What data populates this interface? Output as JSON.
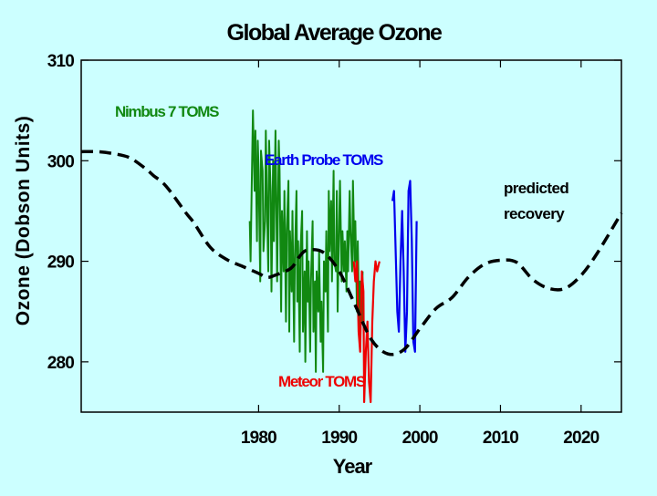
{
  "chart_data": {
    "type": "line",
    "title": "Global Average Ozone",
    "xlabel": "Year",
    "ylabel": "Ozone (Dobson Units)",
    "xlim": [
      1958,
      2025
    ],
    "ylim": [
      275,
      310
    ],
    "x_ticks": [
      "1980",
      "1990",
      "2000",
      "2010",
      "2020"
    ],
    "y_ticks": [
      "280",
      "290",
      "300",
      "310"
    ],
    "grid": false,
    "annotations": {
      "nimbus": "Nimbus 7 TOMS",
      "earth_probe": "Earth Probe TOMS",
      "meteor": "Meteor TOMS",
      "predicted_1": "predicted",
      "predicted_2": "recovery"
    },
    "colors": {
      "nimbus": "#118811",
      "earth_probe": "#0000ee",
      "meteor": "#ee0000",
      "predicted": "#000000"
    },
    "series": [
      {
        "name": "Nimbus 7 TOMS",
        "x": [
          1978.9,
          1979.0,
          1979.2,
          1979.3,
          1979.5,
          1979.6,
          1979.8,
          1979.9,
          1980.0,
          1980.2,
          1980.3,
          1980.5,
          1980.6,
          1980.8,
          1980.9,
          1981.1,
          1981.2,
          1981.3,
          1981.5,
          1981.6,
          1981.8,
          1981.9,
          1982.1,
          1982.2,
          1982.3,
          1982.5,
          1982.6,
          1982.8,
          1982.9,
          1983.1,
          1983.2,
          1983.4,
          1983.5,
          1983.7,
          1983.8,
          1983.9,
          1984.1,
          1984.2,
          1984.4,
          1984.5,
          1984.7,
          1984.8,
          1984.9,
          1985.1,
          1985.2,
          1985.4,
          1985.5,
          1985.7,
          1985.8,
          1986.0,
          1986.1,
          1986.2,
          1986.4,
          1986.5,
          1986.7,
          1986.8,
          1987.0,
          1987.1,
          1987.2,
          1987.4,
          1987.5,
          1987.7,
          1987.8,
          1988.0,
          1988.1,
          1988.3,
          1988.4,
          1988.6,
          1988.7,
          1988.8,
          1989.0,
          1989.1,
          1989.3,
          1989.4,
          1989.6,
          1989.7,
          1989.8,
          1990.0,
          1990.1,
          1990.3,
          1990.4,
          1990.6,
          1990.7,
          1990.9,
          1991.0,
          1991.1,
          1991.3,
          1991.4,
          1991.6,
          1991.7,
          1991.9,
          1992.0,
          1992.2,
          1992.3,
          1992.5,
          1992.6,
          1992.8,
          1992.9
        ],
        "values": [
          294,
          290,
          300,
          305,
          297,
          303,
          292,
          302,
          299,
          288,
          301,
          299,
          291,
          294,
          303,
          293,
          289,
          302,
          297,
          287,
          300,
          292,
          303,
          296,
          288,
          302,
          299,
          285,
          295,
          289,
          297,
          284,
          293,
          298,
          283,
          293,
          287,
          295,
          282,
          290,
          297,
          286,
          292,
          281,
          291,
          295,
          283,
          289,
          280,
          293,
          286,
          290,
          281,
          288,
          294,
          283,
          288,
          279,
          289,
          285,
          291,
          282,
          286,
          279,
          290,
          287,
          293,
          283,
          297,
          291,
          296,
          288,
          299,
          290,
          289,
          297,
          285,
          294,
          298,
          288,
          293,
          289,
          292,
          287,
          293,
          289,
          297,
          293,
          289,
          298,
          290,
          294,
          285,
          292,
          283,
          288,
          284,
          289
        ]
      },
      {
        "name": "Meteor TOMS",
        "x": [
          1991.8,
          1992.0,
          1992.2,
          1992.4,
          1992.6,
          1992.8,
          1993.0,
          1993.1,
          1993.3,
          1993.5,
          1993.7,
          1993.9,
          1994.1,
          1994.3,
          1994.5,
          1994.7,
          1995.0
        ],
        "values": [
          290,
          288,
          290,
          283,
          281,
          289,
          287,
          276,
          281,
          284,
          278,
          276,
          284,
          288,
          290,
          289,
          290
        ]
      },
      {
        "name": "Earth Probe TOMS",
        "x": [
          1996.6,
          1996.8,
          1997.0,
          1997.2,
          1997.4,
          1997.6,
          1997.8,
          1998.0,
          1998.2,
          1998.4,
          1998.6,
          1998.8,
          1999.0,
          1999.2,
          1999.4,
          1999.6
        ],
        "values": [
          296,
          297,
          291,
          285,
          283,
          290,
          295,
          289,
          281,
          285,
          297,
          298,
          292,
          282,
          281,
          294
        ]
      },
      {
        "name": "Predicted",
        "x": [
          1958,
          1960,
          1962,
          1964,
          1966,
          1967,
          1968,
          1969,
          1971,
          1972,
          1974,
          1976,
          1978,
          1980,
          1981,
          1982,
          1984,
          1985,
          1986,
          1988,
          1990,
          1992,
          1994,
          1996,
          1998,
          2000,
          2002,
          2004,
          2006,
          2008,
          2010,
          2012,
          2014,
          2016,
          2018,
          2020,
          2022,
          2025
        ],
        "values": [
          300.9,
          300.9,
          300.7,
          300.3,
          299.2,
          298.5,
          297.9,
          297.0,
          294.8,
          293.8,
          291.4,
          290.2,
          289.5,
          288.8,
          288.4,
          288.6,
          289.3,
          290.4,
          291.1,
          290.9,
          289.0,
          285.6,
          282.2,
          280.8,
          281.2,
          283.3,
          285.3,
          286.4,
          288.4,
          289.7,
          290.1,
          289.9,
          288.2,
          287.3,
          287.3,
          288.6,
          290.8,
          294.8
        ]
      }
    ]
  }
}
